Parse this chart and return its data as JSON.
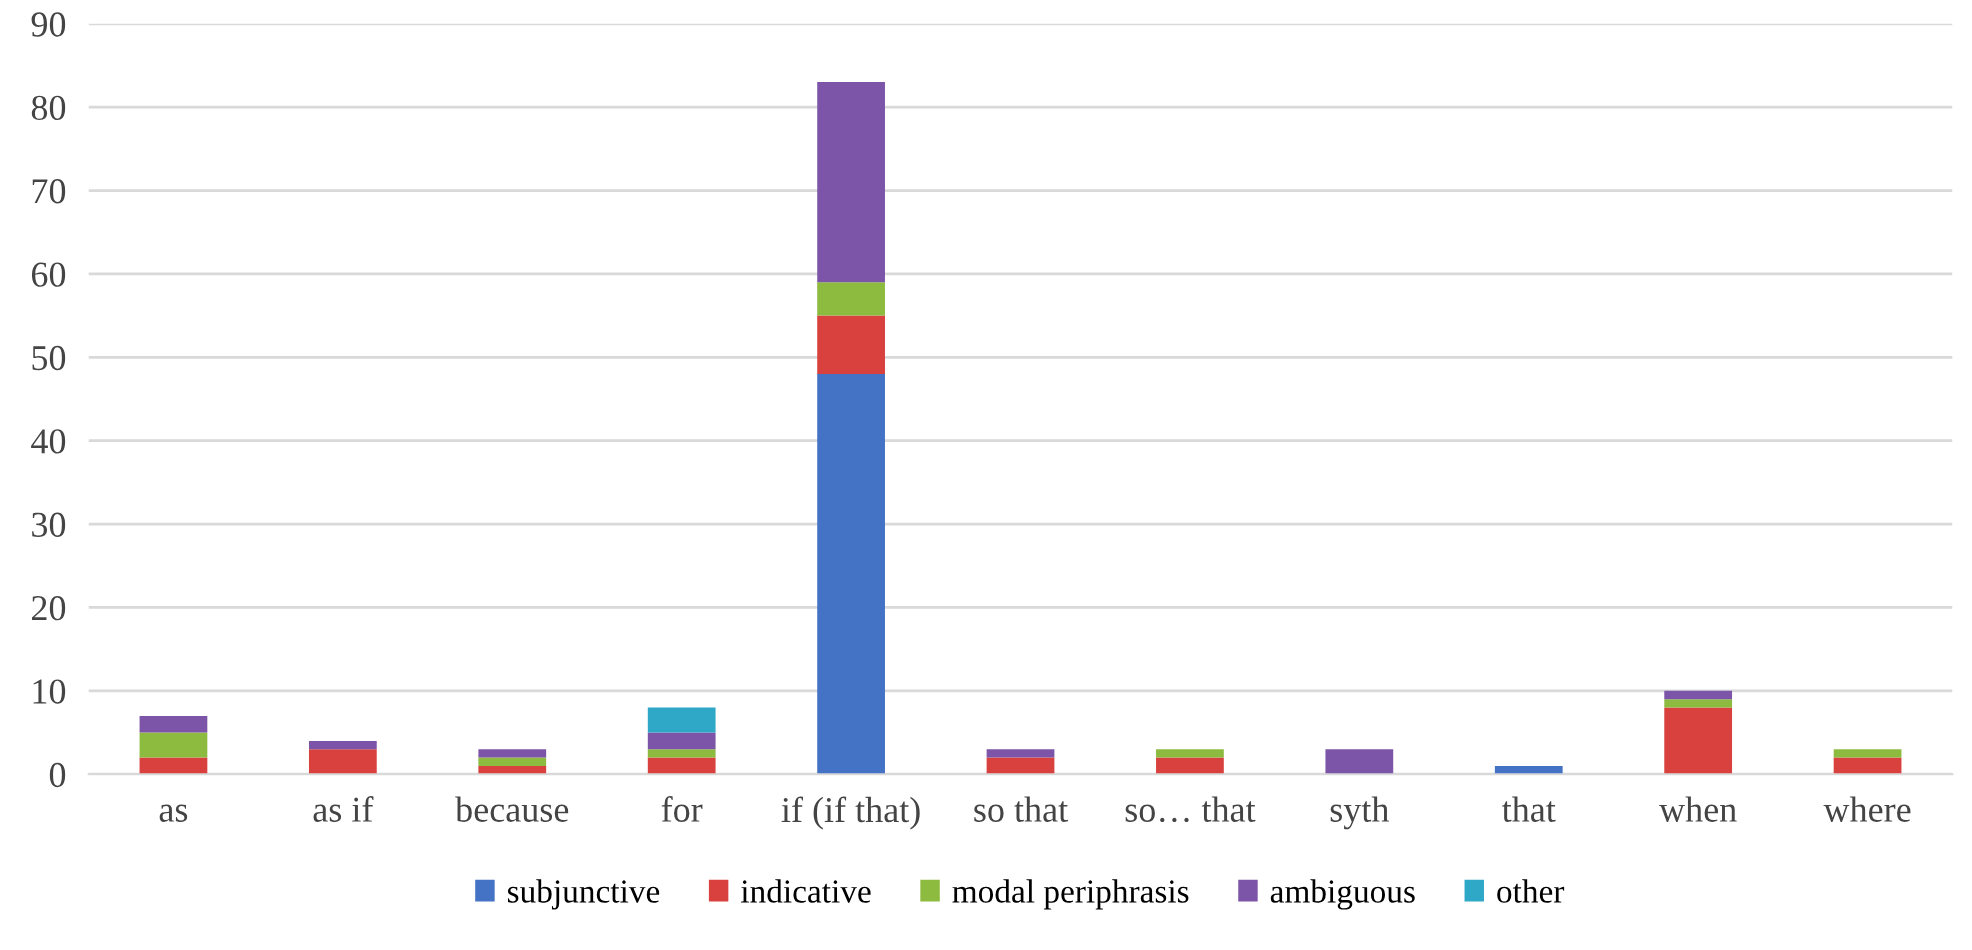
{
  "chart_data": {
    "type": "bar",
    "stacked": true,
    "categories": [
      "as",
      "as if",
      "because",
      "for",
      "if (if that)",
      "so that",
      "so… that",
      "syth",
      "that",
      "when",
      "where"
    ],
    "series": [
      {
        "name": "subjunctive",
        "color": "#4472c4",
        "values": [
          0,
          0,
          0,
          0,
          48,
          0,
          0,
          0,
          1,
          0,
          0
        ]
      },
      {
        "name": "indicative",
        "color": "#d9413e",
        "values": [
          2,
          3,
          1,
          2,
          7,
          2,
          2,
          0,
          0,
          8,
          2
        ]
      },
      {
        "name": "modal periphrasis",
        "color": "#8dbb3f",
        "values": [
          3,
          0,
          1,
          1,
          4,
          0,
          1,
          0,
          0,
          1,
          1
        ]
      },
      {
        "name": "ambiguous",
        "color": "#7d55a8",
        "values": [
          2,
          1,
          1,
          2,
          24,
          1,
          0,
          3,
          0,
          1,
          0
        ]
      },
      {
        "name": "other",
        "color": "#2fa8c8",
        "values": [
          0,
          0,
          0,
          3,
          0,
          0,
          0,
          0,
          0,
          0,
          0
        ]
      }
    ],
    "ylim": [
      0,
      90
    ],
    "yticks": [
      0,
      10,
      20,
      30,
      40,
      50,
      60,
      70,
      80,
      90
    ],
    "grid": "y",
    "legend": "bottom"
  }
}
